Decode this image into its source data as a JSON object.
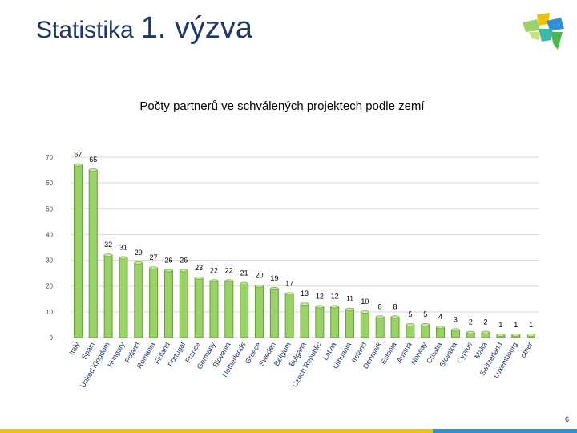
{
  "slide": {
    "title_part1": "Statistika",
    "title_part2": "1. výzva",
    "page_number": "6"
  },
  "colors": {
    "title": "#1f3864",
    "bar_fill": "#9bd169",
    "bar_stroke": "#6a9e36",
    "grid": "#d9d9d9",
    "footer_yellow": "#f2c200",
    "footer_blue": "#2f8fd8"
  },
  "chart_data": {
    "type": "bar",
    "title": "Počty partnerů ve schválených projektech podle zemí",
    "xlabel": "",
    "ylabel": "",
    "ylim": [
      0,
      70
    ],
    "yticks": [
      0,
      10,
      20,
      30,
      40,
      50,
      60,
      70
    ],
    "grid": true,
    "categories": [
      "Italy",
      "Spain",
      "United Kingdom",
      "Hungary",
      "Poland",
      "Romania",
      "Finland",
      "Portugal",
      "France",
      "Germany",
      "Slovenia",
      "Netherlands",
      "Greece",
      "Sweden",
      "Belgium",
      "Bulgaria",
      "Czech Republic",
      "Latvia",
      "Lithuania",
      "Ireland",
      "Denmark",
      "Estonia",
      "Austria",
      "Norway",
      "Croatia",
      "Slovakia",
      "Cyprus",
      "Malta",
      "Switzerland",
      "Luxembourg",
      "other"
    ],
    "values": [
      67,
      65,
      32,
      31,
      29,
      27,
      26,
      26,
      23,
      22,
      22,
      21,
      20,
      19,
      17,
      13,
      12,
      12,
      11,
      10,
      8,
      8,
      5,
      5,
      4,
      3,
      2,
      2,
      1,
      1,
      1
    ]
  }
}
